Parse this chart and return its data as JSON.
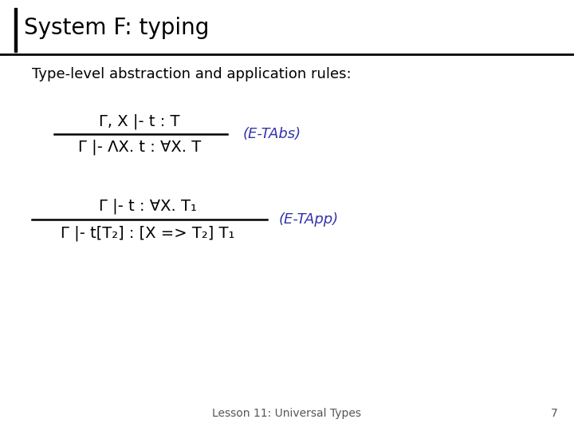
{
  "title": "System F: typing",
  "subtitle": "Type-level abstraction and application rules:",
  "bg_color": "#ffffff",
  "title_color": "#000000",
  "subtitle_color": "#000000",
  "rule_color": "#000000",
  "label_color": "#3333aa",
  "footer_text": "Lesson 11: Universal Types",
  "footer_page": "7",
  "rule1_numerator": "Γ, X |- t : T",
  "rule1_denominator": "Γ |- ΛX. t : ∀X. T",
  "rule1_label": "(E-TAbs)",
  "rule2_numerator": "Γ |- t : ∀X. T₁",
  "rule2_denominator": "Γ |- t[T₂] : [X => T₂] T₁",
  "rule2_label": "(E-TApp)",
  "title_fontsize": 20,
  "subtitle_fontsize": 13,
  "rule_fontsize": 14,
  "label_fontsize": 13,
  "footer_fontsize": 10
}
